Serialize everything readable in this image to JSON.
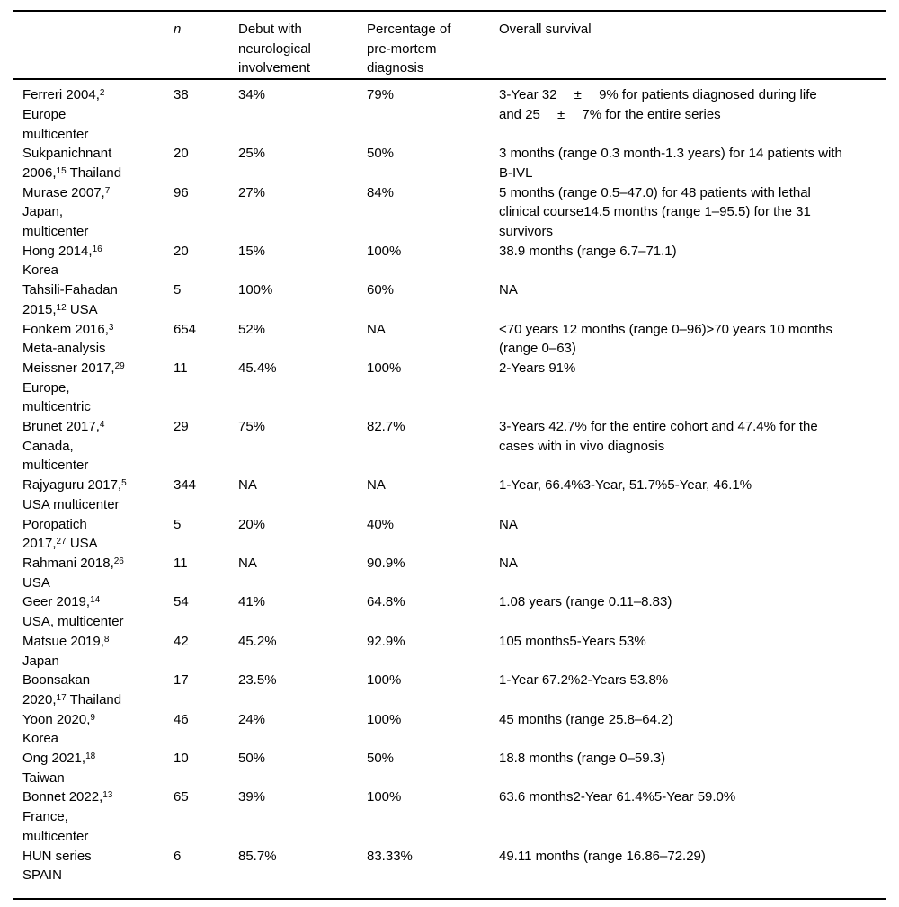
{
  "colors": {
    "background": "#ffffff",
    "text": "#000000",
    "rule": "#000000"
  },
  "table": {
    "headers": [
      "",
      "n",
      "Debut with\nneurological\ninvolvement",
      "Percentage of\npre-mortem\ndiagnosis",
      "Overall survival"
    ],
    "rows": [
      {
        "study": "Ferreri 2004,^2^\nEurope\nmulticenter",
        "n": "38",
        "debut": "34%",
        "premortem": "79%",
        "survival": "3-Year 32  ±  9% for patients diagnosed during life\nand 25  ±  7% for the entire series"
      },
      {
        "study": "Sukpanichnant\n2006,^15^ Thailand",
        "n": "20",
        "debut": "25%",
        "premortem": "50%",
        "survival": "3 months (range 0.3 month-1.3 years) for 14 patients with\nB-IVL"
      },
      {
        "study": "Murase 2007,^7^\nJapan,\nmulticenter",
        "n": "96",
        "debut": "27%",
        "premortem": "84%",
        "survival": "5 months (range 0.5–47.0) for 48 patients with lethal\nclinical course14.5 months (range 1–95.5) for the 31\nsurvivors"
      },
      {
        "study": "Hong 2014,^16^\nKorea",
        "n": "20",
        "debut": "15%",
        "premortem": "100%",
        "survival": "38.9 months (range 6.7–71.1)"
      },
      {
        "study": "Tahsili-Fahadan\n2015,^12^ USA",
        "n": "5",
        "debut": "100%",
        "premortem": "60%",
        "survival": "NA"
      },
      {
        "study": "Fonkem 2016,^3^\nMeta-analysis",
        "n": "654",
        "debut": "52%",
        "premortem": "NA",
        "survival": "<70 years 12 months (range 0–96)>70 years 10 months\n(range 0–63)"
      },
      {
        "study": "Meissner 2017,^29^\nEurope,\nmulticentric",
        "n": "11",
        "debut": "45.4%",
        "premortem": "100%",
        "survival": "2-Years 91%"
      },
      {
        "study": "Brunet 2017,^4^\nCanada,\nmulticenter",
        "n": "29",
        "debut": "75%",
        "premortem": "82.7%",
        "survival": "3-Years 42.7% for the entire cohort and 47.4% for the\ncases with in vivo diagnosis"
      },
      {
        "study": "Rajyaguru 2017,^5^\nUSA multicenter",
        "n": "344",
        "debut": "NA",
        "premortem": "NA",
        "survival": "1-Year, 66.4%3-Year, 51.7%5-Year, 46.1%"
      },
      {
        "study": "Poropatich\n2017,^27^ USA",
        "n": "5",
        "debut": "20%",
        "premortem": "40%",
        "survival": "NA"
      },
      {
        "study": "Rahmani 2018,^26^\nUSA",
        "n": "11",
        "debut": "NA",
        "premortem": "90.9%",
        "survival": "NA"
      },
      {
        "study": "Geer 2019,^14^\nUSA, multicenter",
        "n": "54",
        "debut": "41%",
        "premortem": "64.8%",
        "survival": "1.08 years (range 0.11–8.83)"
      },
      {
        "study": "Matsue 2019,^8^\nJapan",
        "n": "42",
        "debut": "45.2%",
        "premortem": "92.9%",
        "survival": "105 months5-Years 53%"
      },
      {
        "study": "Boonsakan\n2020,^17^ Thailand",
        "n": "17",
        "debut": "23.5%",
        "premortem": "100%",
        "survival": "1-Year 67.2%2-Years 53.8%"
      },
      {
        "study": "Yoon 2020,^9^\nKorea",
        "n": "46",
        "debut": "24%",
        "premortem": "100%",
        "survival": "45 months (range 25.8–64.2)"
      },
      {
        "study": "Ong 2021,^18^\nTaiwan",
        "n": "10",
        "debut": "50%",
        "premortem": "50%",
        "survival": "18.8 months (range 0–59.3)"
      },
      {
        "study": "Bonnet 2022,^13^\nFrance,\nmulticenter",
        "n": "65",
        "debut": "39%",
        "premortem": "100%",
        "survival": "63.6 months2-Year 61.4%5-Year 59.0%"
      },
      {
        "study": "HUN series\nSPAIN",
        "n": "6",
        "debut": "85.7%",
        "premortem": "83.33%",
        "survival": "49.11 months (range 16.86–72.29)"
      }
    ]
  }
}
